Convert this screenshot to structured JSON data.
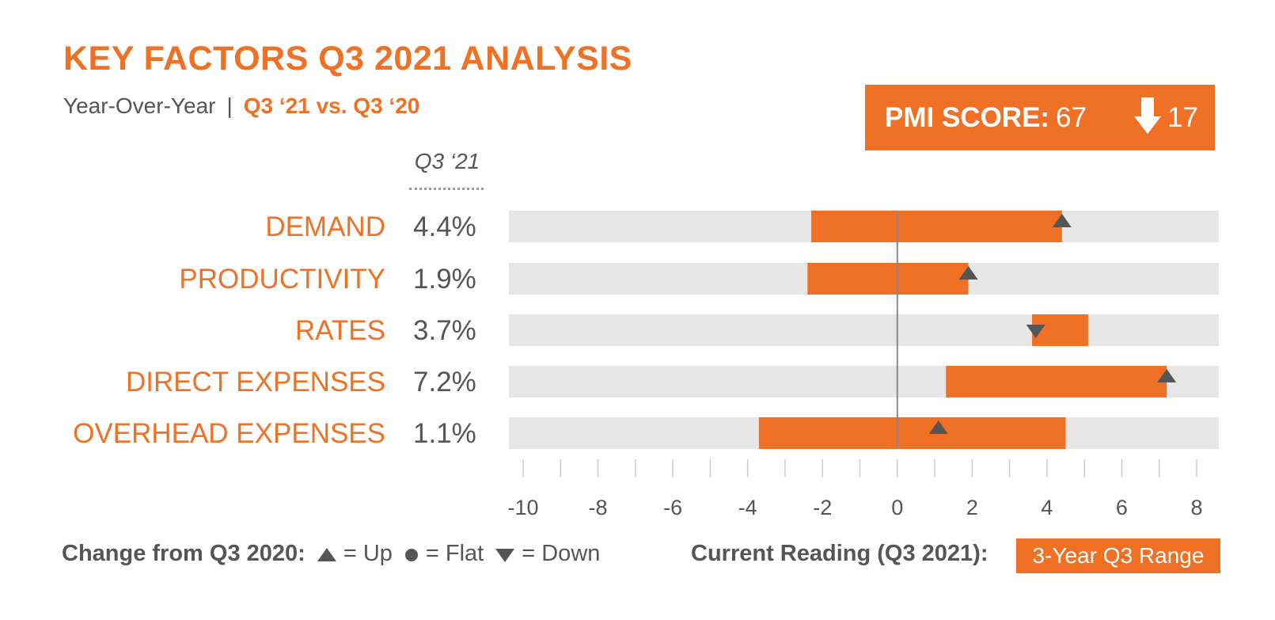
{
  "header": {
    "title": "KEY FACTORS Q3 2021 ANALYSIS",
    "subtitle_left": "Year-Over-Year",
    "subtitle_sep": "|",
    "subtitle_right": "Q3 ‘21 vs. Q3 ‘20"
  },
  "pmi": {
    "label": "PMI SCORE:",
    "value": "67",
    "change": "17",
    "direction": "down"
  },
  "column_header": "Q3 ‘21",
  "legend": {
    "change_label": "Change from Q3 2020:",
    "up": "= Up",
    "flat": "= Flat",
    "down": "= Down",
    "current_label": "Current Reading (Q3 2021):",
    "range_label": "3-Year Q3 Range"
  },
  "colors": {
    "accent": "#f07125",
    "track": "#e6e6e7",
    "marker": "#555555",
    "text": "#555555"
  },
  "chart_data": {
    "type": "bar",
    "subtype": "floating-range",
    "categories": [
      "DEMAND",
      "PRODUCTIVITY",
      "RATES",
      "DIRECT EXPENSES",
      "OVERHEAD EXPENSES"
    ],
    "current_labels": [
      "4.4%",
      "1.9%",
      "3.7%",
      "7.2%",
      "1.1%"
    ],
    "current": [
      4.4,
      1.9,
      3.7,
      7.2,
      1.1
    ],
    "range_min": [
      -2.3,
      -2.4,
      3.6,
      1.3,
      -3.7
    ],
    "range_max": [
      4.4,
      1.9,
      5.1,
      7.2,
      4.5
    ],
    "change": [
      "up",
      "up",
      "down",
      "up",
      "up"
    ],
    "xlim": [
      -10,
      8
    ],
    "ticks": [
      -10,
      -8,
      -6,
      -4,
      -2,
      0,
      2,
      4,
      6,
      8
    ],
    "tick_labels": [
      "-10",
      "-8",
      "-6",
      "-4",
      "-2",
      "0",
      "2",
      "4",
      "6",
      "8"
    ]
  }
}
